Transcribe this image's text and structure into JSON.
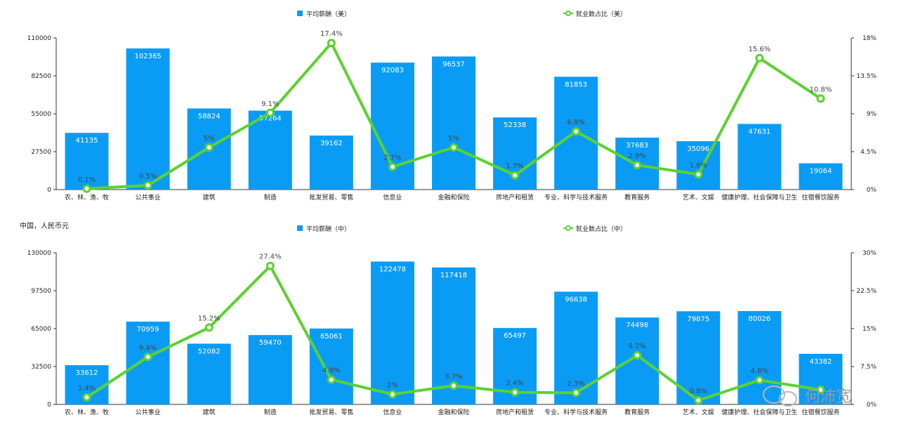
{
  "colors": {
    "bar": "#0A9CF5",
    "line": "#5BD22F",
    "axis": "#333333",
    "grid": "#dddddd"
  },
  "watermark": {
    "text": "何沛宽"
  },
  "chart_data": [
    {
      "type": "bar",
      "subtitle": "",
      "legend": {
        "bar_label": "平均薪酬（美）",
        "line_label": "就业数占比（美）",
        "position": "top"
      },
      "categories": [
        "农、林、渔、牧",
        "公共事业",
        "建筑",
        "制造",
        "批发贸易、零售",
        "信息业",
        "金融和保险",
        "房地产和租赁",
        "专业、科学与技术服务",
        "教育服务",
        "艺术、文娱",
        "健康护理、社会保障与卫生",
        "住宿餐饮服务"
      ],
      "series": [
        {
          "name": "平均薪酬（美）",
          "type": "bar",
          "axis": "left",
          "values": [
            41135,
            102365,
            58824,
            57264,
            39162,
            92083,
            96537,
            52338,
            81853,
            37683,
            35096,
            47631,
            19064
          ]
        },
        {
          "name": "就业数占比（美）",
          "type": "line",
          "axis": "right",
          "values": [
            0.1,
            0.5,
            5,
            9.1,
            17.4,
            2.7,
            5,
            1.7,
            6.9,
            2.9,
            1.8,
            15.6,
            10.8
          ],
          "labels": [
            "0.1%",
            "0.5%",
            "5%",
            "9.1%",
            "17.4%",
            "2.7%",
            "5%",
            "1.7%",
            "6.9%",
            "2.9%",
            "1.8%",
            "15.6%",
            "10.8%"
          ]
        }
      ],
      "y_left": {
        "ticks": [
          "0",
          "27500",
          "55000",
          "82500",
          "110000"
        ],
        "lim": [
          0,
          110000
        ]
      },
      "y_right": {
        "ticks": [
          "0%",
          "4.5%",
          "9%",
          "13.5%",
          "18%"
        ],
        "lim": [
          0,
          18
        ]
      },
      "grid": false
    },
    {
      "type": "bar",
      "subtitle": "中国，人民币元",
      "legend": {
        "bar_label": "平均薪酬（中）",
        "line_label": "就业数占比（中）",
        "position": "top"
      },
      "categories": [
        "农、林、渔、牧",
        "公共事业",
        "建筑",
        "制造",
        "批发贸易、零售",
        "信息业",
        "金融和保险",
        "房地产和租赁",
        "专业、科学与技术服务",
        "教育服务",
        "艺术、文娱",
        "健康护理、社会保障与卫生",
        "住宿餐饮服务"
      ],
      "series": [
        {
          "name": "平均薪酬（中）",
          "type": "bar",
          "axis": "left",
          "values": [
            33612,
            70959,
            52082,
            59470,
            65061,
            122478,
            117418,
            65497,
            96638,
            74498,
            79875,
            80026,
            43382
          ]
        },
        {
          "name": "就业数占比（中）",
          "type": "line",
          "axis": "right",
          "values": [
            1.4,
            9.4,
            15.2,
            27.4,
            4.9,
            2,
            3.7,
            2.4,
            2.3,
            9.7,
            0.8,
            4.8,
            2.9
          ],
          "labels": [
            "1.4%",
            "9.4%",
            "15.2%",
            "27.4%",
            "4.9%",
            "2%",
            "3.7%",
            "2.4%",
            "2.3%",
            "9.7%",
            "0.8%",
            "4.8%",
            ""
          ]
        }
      ],
      "y_left": {
        "ticks": [
          "0",
          "32500",
          "65000",
          "97500",
          "130000"
        ],
        "lim": [
          0,
          130000
        ]
      },
      "y_right": {
        "ticks": [
          "0%",
          "7.5%",
          "15%",
          "22.5%",
          "30%"
        ],
        "lim": [
          0,
          30
        ]
      },
      "grid": false
    }
  ]
}
